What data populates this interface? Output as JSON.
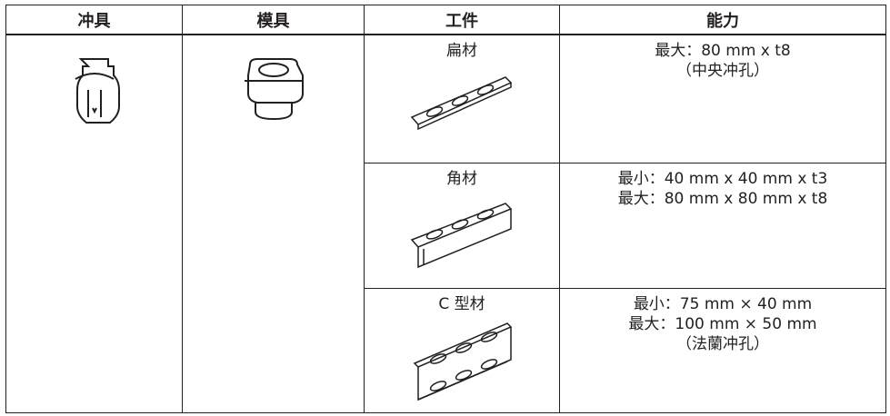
{
  "header": [
    "冲具",
    "模具",
    "工件",
    "能力"
  ],
  "rows": [
    {
      "workpiece": "扁材",
      "capacity": [
        "最大：80 mm x t8",
        "（中央冲孔）"
      ]
    },
    {
      "workpiece": "角材",
      "capacity": [
        "最小：40 mm x 40 mm x t3",
        "最大：80 mm x 80 mm x t8"
      ]
    },
    {
      "workpiece": "C 型材",
      "capacity": [
        "最小：75 mm × 40 mm",
        "最大：100 mm × 50 mm",
        "（法蘭冲孔）"
      ]
    }
  ]
}
